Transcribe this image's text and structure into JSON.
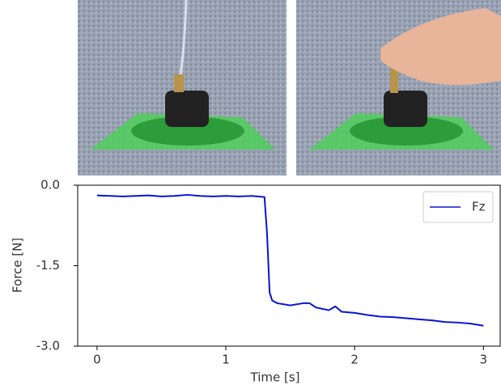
{
  "chart_data": {
    "type": "line",
    "x": [
      0,
      0.1,
      0.2,
      0.3,
      0.4,
      0.5,
      0.6,
      0.7,
      0.8,
      0.9,
      1.0,
      1.1,
      1.2,
      1.3,
      1.32,
      1.34,
      1.36,
      1.4,
      1.5,
      1.6,
      1.65,
      1.7,
      1.8,
      1.85,
      1.9,
      2.0,
      2.1,
      2.2,
      2.3,
      2.4,
      2.5,
      2.6,
      2.7,
      2.8,
      2.9,
      3.0
    ],
    "series": [
      {
        "name": "Fz",
        "color": "#0a14d2",
        "values": [
          -0.19,
          -0.2,
          -0.21,
          -0.2,
          -0.19,
          -0.21,
          -0.2,
          -0.18,
          -0.2,
          -0.21,
          -0.2,
          -0.21,
          -0.2,
          -0.22,
          -0.9,
          -2.0,
          -2.15,
          -2.2,
          -2.24,
          -2.2,
          -2.2,
          -2.28,
          -2.33,
          -2.26,
          -2.36,
          -2.38,
          -2.42,
          -2.45,
          -2.46,
          -2.48,
          -2.5,
          -2.52,
          -2.55,
          -2.56,
          -2.58,
          -2.62
        ]
      }
    ],
    "xlabel": "Time [s]",
    "ylabel": "Force [N]",
    "xlim": [
      -0.15,
      3.13
    ],
    "xticks": [
      0,
      1,
      2,
      3
    ],
    "ylim": [
      -3.0,
      0
    ],
    "yticks": [
      {
        "value": 0,
        "label": "0.0"
      },
      -1.5,
      {
        "value": -3,
        "label": "-3.0"
      }
    ],
    "legend": "upper right"
  }
}
